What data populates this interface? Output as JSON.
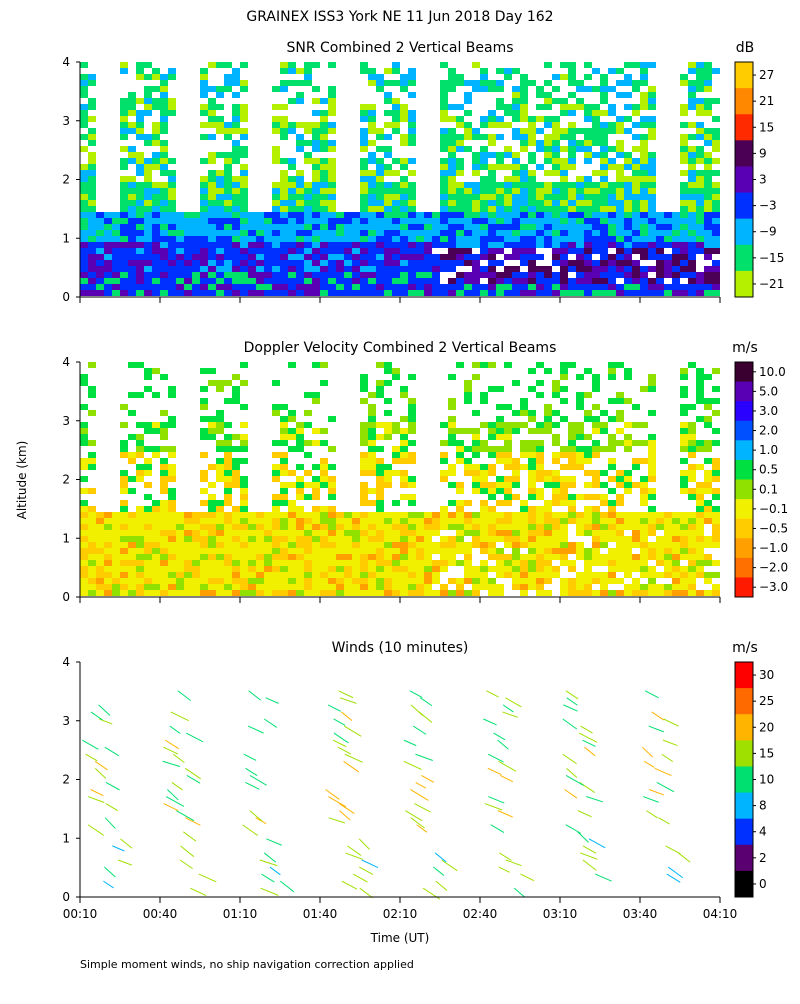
{
  "figure_title": "GRAINEX ISS3 York NE  11 Jun 2018 Day 162",
  "ylabel": "Altitude (km)",
  "xlabel": "Time (UT)",
  "footnote": "Simple moment winds, no ship navigation correction applied",
  "x_ticks": [
    "00:10",
    "00:40",
    "01:10",
    "01:40",
    "02:10",
    "02:40",
    "03:10",
    "03:40",
    "04:10"
  ],
  "y_ticks": [
    "0",
    "1",
    "2",
    "3",
    "4"
  ],
  "chart_data": [
    {
      "type": "heatmap",
      "title": "SNR Combined 2 Vertical Beams",
      "units": "dB",
      "xlabel": "",
      "ylabel": "Altitude (km)",
      "xlim": [
        "00:10",
        "04:10"
      ],
      "ylim": [
        0,
        4
      ],
      "colorbar": {
        "ticks": [
          "27",
          "21",
          "15",
          "9",
          "3",
          "−3",
          "−9",
          "−15",
          "−21"
        ],
        "colors": [
          "#ffcc00",
          "#ff8800",
          "#ff2a00",
          "#4b0055",
          "#5a00b4",
          "#0030ff",
          "#00b4ff",
          "#00e06a",
          "#b4f000"
        ]
      }
    },
    {
      "type": "heatmap",
      "title": "Doppler Velocity Combined 2 Vertical Beams",
      "units": "m/s",
      "xlabel": "",
      "ylabel": "Altitude (km)",
      "xlim": [
        "00:10",
        "04:10"
      ],
      "ylim": [
        0,
        4
      ],
      "colorbar": {
        "ticks": [
          "10.0",
          "5.0",
          "3.0",
          "2.0",
          "1.0",
          "0.5",
          "0.1",
          "−0.1",
          "−0.5",
          "−1.0",
          "−2.0",
          "−3.0"
        ],
        "colors": [
          "#3a0030",
          "#5a00b4",
          "#2a00ff",
          "#0050ff",
          "#00b4ff",
          "#00e040",
          "#90e000",
          "#f0f000",
          "#ffcc00",
          "#ffa000",
          "#ff7000",
          "#ff1a00"
        ]
      }
    },
    {
      "type": "barbs",
      "title": "Winds (10 minutes)",
      "units": "m/s",
      "xlabel": "Time (UT)",
      "ylabel": "Altitude (km)",
      "xlim": [
        "00:10",
        "04:10"
      ],
      "ylim": [
        0,
        4
      ],
      "profile_times": [
        "00:10",
        "00:40",
        "01:10",
        "01:40",
        "02:10",
        "02:40",
        "03:10",
        "03:40"
      ],
      "colorbar": {
        "ticks": [
          "30",
          "25",
          "20",
          "15",
          "10",
          "8",
          "4",
          "2",
          "0"
        ],
        "colors": [
          "#ff0000",
          "#ff6a00",
          "#ffb400",
          "#a0e000",
          "#00e070",
          "#00b4ff",
          "#0030ff",
          "#5a0070",
          "#000000"
        ]
      }
    }
  ]
}
